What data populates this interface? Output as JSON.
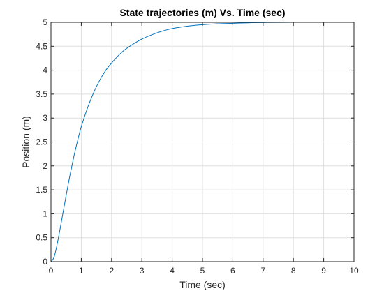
{
  "chart_data": {
    "type": "line",
    "title": "State trajectories (m) Vs. Time (sec)",
    "xlabel": "Time (sec)",
    "ylabel": "Position (m)",
    "xlim": [
      0,
      10
    ],
    "ylim": [
      0,
      5
    ],
    "xticks": [
      "0",
      "1",
      "2",
      "3",
      "4",
      "5",
      "6",
      "7",
      "8",
      "9",
      "10"
    ],
    "yticks": [
      "0",
      "0.5",
      "1",
      "1.5",
      "2",
      "2.5",
      "3",
      "3.5",
      "4",
      "4.5",
      "5"
    ],
    "grid": true,
    "series": [
      {
        "color": "#0072BD",
        "x": [
          0,
          0.1,
          0.2,
          0.3,
          0.4,
          0.5,
          0.6,
          0.7,
          0.8,
          0.9,
          1.0,
          1.2,
          1.4,
          1.6,
          1.8,
          2.0,
          2.2,
          2.4,
          2.6,
          2.8,
          3.0,
          3.25,
          3.5,
          3.75,
          4.0,
          4.5,
          5.0,
          5.5,
          6.0,
          6.5,
          7.0,
          8.0,
          9.0,
          10.0
        ],
        "y": [
          0,
          0.09,
          0.35,
          0.68,
          1.03,
          1.38,
          1.72,
          2.03,
          2.32,
          2.58,
          2.82,
          3.2,
          3.52,
          3.78,
          3.99,
          4.15,
          4.29,
          4.41,
          4.5,
          4.58,
          4.65,
          4.72,
          4.78,
          4.83,
          4.87,
          4.92,
          4.95,
          4.97,
          4.98,
          4.99,
          4.995,
          5.0,
          5.0,
          5.0
        ]
      }
    ]
  }
}
